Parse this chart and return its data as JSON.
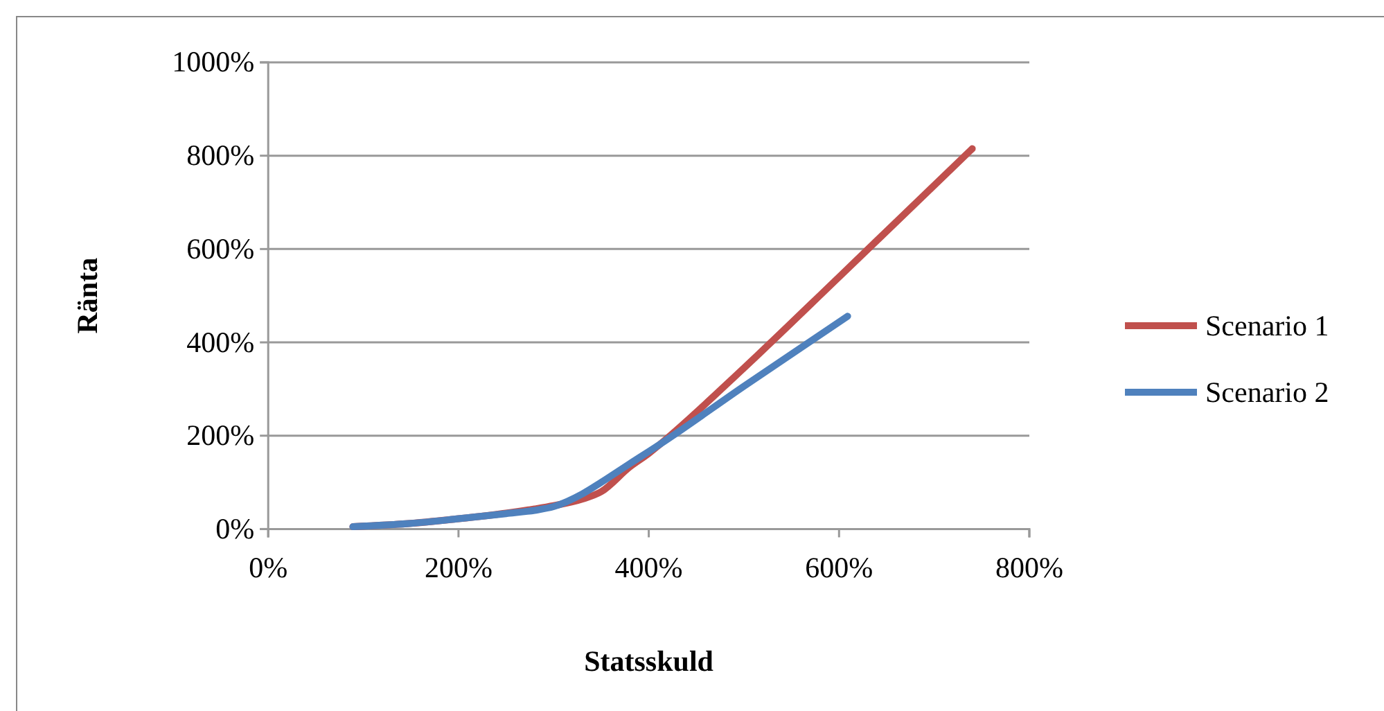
{
  "chart_data": {
    "type": "line",
    "xlabel": "Statsskuld",
    "ylabel": "Ränta",
    "xlim": [
      0,
      800
    ],
    "xticks": [
      {
        "value": 0,
        "label": "0%"
      },
      {
        "value": 200,
        "label": "200%"
      },
      {
        "value": 400,
        "label": "400%"
      },
      {
        "value": 600,
        "label": "600%"
      },
      {
        "value": 800,
        "label": "800%"
      }
    ],
    "ylim": [
      0,
      1000
    ],
    "yticks": [
      {
        "value": 0,
        "label": "0%"
      },
      {
        "value": 200,
        "label": "200%"
      },
      {
        "value": 400,
        "label": "400%"
      },
      {
        "value": 600,
        "label": "600%"
      },
      {
        "value": 800,
        "label": "800%"
      },
      {
        "value": 1000,
        "label": "1000%"
      }
    ],
    "grid": "y",
    "legend": "right",
    "marker": "none",
    "line_style": "solid",
    "series": [
      {
        "name": "Scenario 1",
        "color": "#c0504d",
        "x": [
          89,
          150,
          200,
          250,
          280,
          300,
          330,
          350,
          380,
          400,
          412,
          500,
          600,
          740
        ],
        "values": [
          5,
          12,
          22,
          34,
          43,
          50,
          64,
          80,
          133,
          162,
          182,
          345,
          540,
          815
        ]
      },
      {
        "name": "Scenario 2",
        "color": "#4f81bd",
        "x": [
          89,
          150,
          200,
          250,
          280,
          300,
          330,
          350,
          380,
          412,
          500,
          609
        ],
        "values": [
          5,
          12,
          22,
          33,
          40,
          48,
          75,
          100,
          140,
          182,
          306,
          456
        ]
      }
    ]
  }
}
